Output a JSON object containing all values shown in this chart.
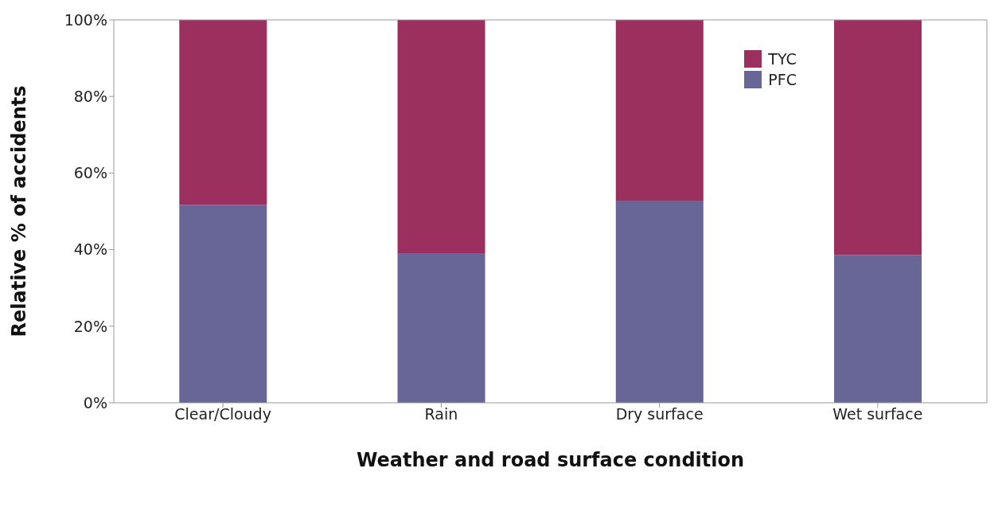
{
  "chart_data": {
    "type": "bar",
    "stacked": true,
    "xlabel": "Weather and road surface condition",
    "ylabel": "Relative % of accidents",
    "categories": [
      "Clear/Cloudy",
      "Rain",
      "Dry surface",
      "Wet surface"
    ],
    "series": [
      {
        "name": "PFC",
        "color": "#676697",
        "values": [
          51.7,
          39.1,
          52.8,
          38.6
        ]
      },
      {
        "name": "TYC",
        "color": "#9b2f5e",
        "values": [
          48.3,
          60.9,
          47.2,
          61.4
        ]
      }
    ],
    "ylim": [
      0,
      100
    ],
    "yticks": [
      {
        "value": 0,
        "label": "0%"
      },
      {
        "value": 20,
        "label": "20%"
      },
      {
        "value": 40,
        "label": "40%"
      },
      {
        "value": 60,
        "label": "60%"
      },
      {
        "value": 80,
        "label": "80%"
      },
      {
        "value": 100,
        "label": "100%"
      }
    ],
    "legend": "top right"
  }
}
